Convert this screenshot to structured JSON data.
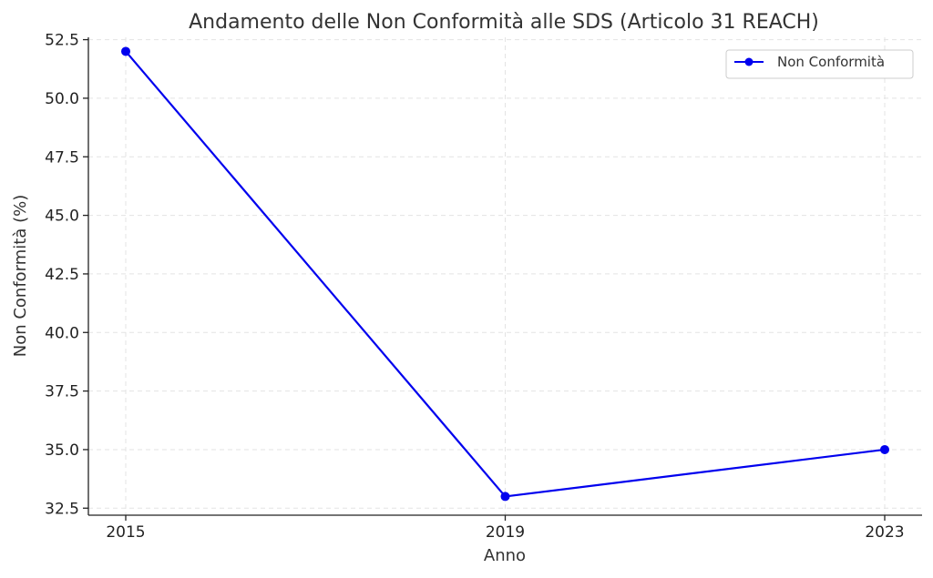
{
  "chart_data": {
    "type": "line",
    "title": "Andamento delle Non Conformità alle SDS (Articolo 31 REACH)",
    "xlabel": "Anno",
    "ylabel": "Non Conformità (%)",
    "x": [
      "2015",
      "2019",
      "2023"
    ],
    "series": [
      {
        "name": "Non Conformità",
        "values": [
          52,
          33,
          35
        ],
        "color": "#0000ee"
      }
    ],
    "ylim": [
      32.2,
      52.6
    ],
    "yticks": [
      32.5,
      35.0,
      37.5,
      40.0,
      42.5,
      45.0,
      47.5,
      50.0,
      52.5
    ],
    "ytick_labels": [
      "32.5",
      "35.0",
      "37.5",
      "40.0",
      "42.5",
      "45.0",
      "47.5",
      "50.0",
      "52.5"
    ],
    "grid": true,
    "legend": "top-right"
  }
}
